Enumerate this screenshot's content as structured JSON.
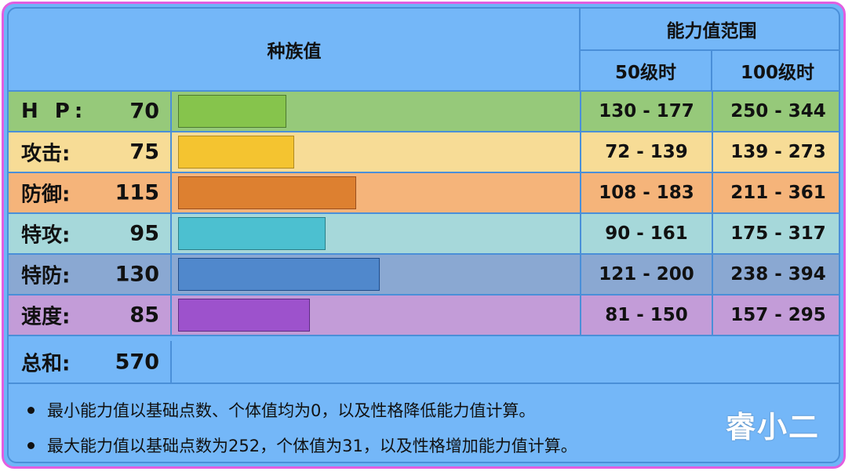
{
  "header": {
    "base_stats_title": "种族值",
    "range_title": "能力值范围",
    "lv50": "50级时",
    "lv100": "100级时"
  },
  "chart_data": {
    "type": "table",
    "stats": [
      {
        "label": "H P:",
        "value": 70,
        "range50": "130 - 177",
        "range100": "250 - 344",
        "bg": "#96c97a",
        "bar": "#86c44c",
        "border": "#4d7a30"
      },
      {
        "label": "攻击:",
        "value": 75,
        "range50": "72 - 139",
        "range100": "139 - 273",
        "bg": "#f7dc96",
        "bar": "#f4c430",
        "border": "#b08a20"
      },
      {
        "label": "防御:",
        "value": 115,
        "range50": "108 - 183",
        "range100": "211 - 361",
        "bg": "#f5b47a",
        "bar": "#dd8030",
        "border": "#9a5020"
      },
      {
        "label": "特攻:",
        "value": 95,
        "range50": "90 - 161",
        "range100": "175 - 317",
        "bg": "#a6d8da",
        "bar": "#4cc0d0",
        "border": "#2a7f88"
      },
      {
        "label": "特防:",
        "value": 130,
        "range50": "121 - 200",
        "range100": "238 - 394",
        "bg": "#8aa8d2",
        "bar": "#5088cc",
        "border": "#1f4c8a"
      },
      {
        "label": "速度:",
        "value": 85,
        "range50": "81 - 150",
        "range100": "157 - 295",
        "bg": "#c39cd8",
        "bar": "#9d52cc",
        "border": "#5e2c84"
      }
    ],
    "total_label": "总和:",
    "total_value": 570,
    "scale_max": 255
  },
  "notes": [
    "最小能力值以基础点数、个体值均为0，以及性格降低能力值计算。",
    "最大能力值以基础点数为252，个体值为31，以及性格增加能力值计算。"
  ],
  "watermark": "睿小二"
}
